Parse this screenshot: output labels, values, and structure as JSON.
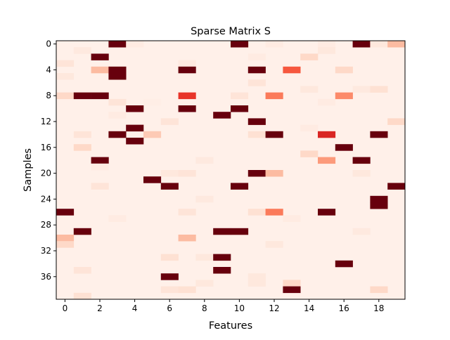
{
  "chart_data": {
    "type": "heatmap",
    "title": "Sparse Matrix S",
    "xlabel": "Features",
    "ylabel": "Samples",
    "n_rows": 40,
    "n_cols": 20,
    "x_ticks": [
      0,
      2,
      4,
      6,
      8,
      10,
      12,
      14,
      16,
      18
    ],
    "y_ticks": [
      0,
      4,
      8,
      12,
      16,
      20,
      24,
      28,
      32,
      36
    ],
    "colormap": "Reds",
    "value_range": [
      0,
      1
    ],
    "background_value": 0.03,
    "grid": false,
    "legend": "none",
    "cells": [
      [
        0,
        3,
        1.0
      ],
      [
        0,
        4,
        0.06
      ],
      [
        0,
        10,
        1.0
      ],
      [
        0,
        12,
        0.06
      ],
      [
        0,
        15,
        0.06
      ],
      [
        0,
        17,
        1.0
      ],
      [
        0,
        18,
        0.08
      ],
      [
        0,
        19,
        0.25
      ],
      [
        1,
        1,
        0.07
      ],
      [
        1,
        15,
        0.08
      ],
      [
        2,
        2,
        1.0
      ],
      [
        2,
        11,
        0.06
      ],
      [
        2,
        14,
        0.15
      ],
      [
        3,
        0,
        0.1
      ],
      [
        3,
        7,
        0.07
      ],
      [
        4,
        2,
        0.25
      ],
      [
        4,
        3,
        1.0
      ],
      [
        4,
        7,
        1.0
      ],
      [
        4,
        11,
        1.0
      ],
      [
        4,
        13,
        0.55
      ],
      [
        4,
        16,
        0.15
      ],
      [
        5,
        0,
        0.08
      ],
      [
        5,
        3,
        1.0
      ],
      [
        6,
        11,
        0.1
      ],
      [
        7,
        14,
        0.08
      ],
      [
        7,
        17,
        0.07
      ],
      [
        7,
        18,
        0.12
      ],
      [
        8,
        0,
        0.15
      ],
      [
        8,
        1,
        1.0
      ],
      [
        8,
        2,
        1.0
      ],
      [
        8,
        7,
        0.65
      ],
      [
        8,
        10,
        0.1
      ],
      [
        8,
        12,
        0.45
      ],
      [
        8,
        16,
        0.4
      ],
      [
        9,
        3,
        0.1
      ],
      [
        9,
        5,
        0.04
      ],
      [
        9,
        15,
        0.06
      ],
      [
        10,
        4,
        1.0
      ],
      [
        10,
        7,
        1.0
      ],
      [
        10,
        10,
        1.0
      ],
      [
        11,
        3,
        0.06
      ],
      [
        11,
        9,
        1.0
      ],
      [
        12,
        6,
        0.1
      ],
      [
        12,
        11,
        1.0
      ],
      [
        12,
        19,
        0.15
      ],
      [
        13,
        4,
        1.0
      ],
      [
        13,
        14,
        0.06
      ],
      [
        14,
        1,
        0.1
      ],
      [
        14,
        3,
        1.0
      ],
      [
        14,
        5,
        0.2
      ],
      [
        14,
        11,
        0.12
      ],
      [
        14,
        12,
        1.0
      ],
      [
        14,
        15,
        0.7
      ],
      [
        14,
        18,
        1.0
      ],
      [
        15,
        4,
        1.0
      ],
      [
        16,
        1,
        0.15
      ],
      [
        16,
        16,
        1.0
      ],
      [
        17,
        14,
        0.15
      ],
      [
        18,
        2,
        1.0
      ],
      [
        18,
        8,
        0.07
      ],
      [
        18,
        15,
        0.35
      ],
      [
        18,
        17,
        1.0
      ],
      [
        19,
        2,
        0.06
      ],
      [
        20,
        6,
        0.08
      ],
      [
        20,
        7,
        0.1
      ],
      [
        20,
        11,
        1.0
      ],
      [
        20,
        12,
        0.25
      ],
      [
        20,
        17,
        0.08
      ],
      [
        21,
        5,
        1.0
      ],
      [
        22,
        2,
        0.1
      ],
      [
        22,
        6,
        1.0
      ],
      [
        22,
        10,
        1.0
      ],
      [
        22,
        19,
        1.0
      ],
      [
        24,
        8,
        0.07
      ],
      [
        24,
        18,
        1.0
      ],
      [
        25,
        18,
        1.0
      ],
      [
        26,
        0,
        1.0
      ],
      [
        26,
        7,
        0.1
      ],
      [
        26,
        11,
        0.12
      ],
      [
        26,
        12,
        0.45
      ],
      [
        26,
        15,
        1.0
      ],
      [
        27,
        3,
        0.06
      ],
      [
        27,
        13,
        0.06
      ],
      [
        29,
        1,
        1.0
      ],
      [
        29,
        9,
        1.0
      ],
      [
        29,
        10,
        1.0
      ],
      [
        29,
        17,
        0.07
      ],
      [
        30,
        0,
        0.25
      ],
      [
        30,
        7,
        0.25
      ],
      [
        31,
        0,
        0.15
      ],
      [
        31,
        12,
        0.08
      ],
      [
        33,
        6,
        0.12
      ],
      [
        33,
        8,
        0.08
      ],
      [
        33,
        9,
        1.0
      ],
      [
        34,
        16,
        1.0
      ],
      [
        35,
        1,
        0.1
      ],
      [
        35,
        9,
        1.0
      ],
      [
        36,
        6,
        1.0
      ],
      [
        36,
        11,
        0.08
      ],
      [
        37,
        8,
        0.08
      ],
      [
        37,
        11,
        0.08
      ],
      [
        37,
        13,
        0.15
      ],
      [
        38,
        6,
        0.1
      ],
      [
        38,
        7,
        0.12
      ],
      [
        38,
        13,
        1.0
      ],
      [
        38,
        18,
        0.15
      ],
      [
        39,
        1,
        0.12
      ]
    ]
  }
}
